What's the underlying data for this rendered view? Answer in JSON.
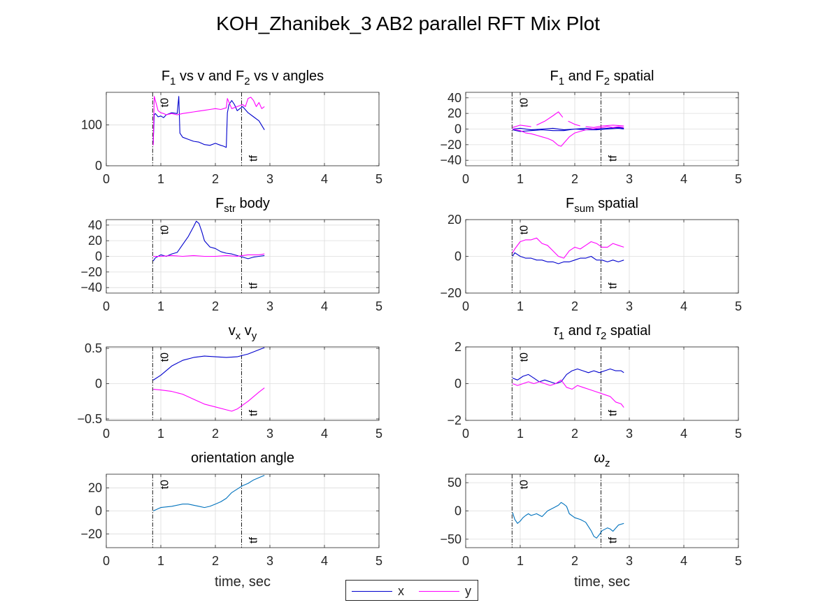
{
  "title": "KOH_Zhanibek_3 AB2 parallel RFT Mix Plot",
  "colors": {
    "x": "#0000cd",
    "y": "#ff00ff",
    "single": "#0072bd",
    "axis": "#262626",
    "grid": "#dcdcdc",
    "marker": "#000000"
  },
  "markers": {
    "t0": 0.85,
    "tf": 2.48,
    "t0_label": "t0",
    "tf_label": "tf"
  },
  "legend": {
    "placement": "bottom-center",
    "items": [
      {
        "label": "x",
        "series": "x"
      },
      {
        "label": "y",
        "series": "y"
      }
    ]
  },
  "chart_data": [
    {
      "id": "p1",
      "type": "line",
      "title": [
        {
          "t": "F"
        },
        {
          "t": "1",
          "sub": true
        },
        {
          "t": " vs v and F"
        },
        {
          "t": "2",
          "sub": true
        },
        {
          "t": " vs v angles"
        }
      ],
      "xlabel": "",
      "xlim": [
        0,
        5
      ],
      "ylim": [
        0,
        180
      ],
      "xticks": [
        0,
        1,
        2,
        3,
        4,
        5
      ],
      "yticks": [
        0,
        100
      ],
      "grid": true,
      "series": [
        {
          "key": "x",
          "x": [
            0.86,
            0.88,
            0.9,
            0.95,
            1.0,
            1.05,
            1.1,
            1.2,
            1.3,
            1.33,
            1.35,
            1.4,
            1.5,
            1.6,
            1.7,
            1.8,
            1.9,
            2.0,
            2.1,
            2.15,
            2.2,
            2.22,
            2.25,
            2.3,
            2.35,
            2.4,
            2.45,
            2.5,
            2.6,
            2.7,
            2.8,
            2.9
          ],
          "y": [
            55,
            125,
            128,
            120,
            122,
            118,
            125,
            130,
            128,
            170,
            80,
            70,
            65,
            60,
            58,
            52,
            50,
            55,
            50,
            48,
            45,
            130,
            150,
            160,
            150,
            135,
            140,
            145,
            130,
            120,
            110,
            88
          ]
        },
        {
          "key": "y",
          "x": [
            0.86,
            0.88,
            0.9,
            0.95,
            1.0,
            1.05,
            1.1,
            1.2,
            1.3,
            1.4,
            1.5,
            1.6,
            1.7,
            1.8,
            1.9,
            2.0,
            2.1,
            2.2,
            2.22,
            2.3,
            2.4,
            2.5,
            2.55,
            2.6,
            2.65,
            2.7,
            2.75,
            2.8,
            2.85,
            2.9
          ],
          "y": [
            50,
            170,
            160,
            135,
            130,
            128,
            125,
            128,
            125,
            128,
            130,
            132,
            134,
            136,
            138,
            140,
            138,
            142,
            165,
            140,
            145,
            150,
            145,
            165,
            168,
            160,
            145,
            155,
            140,
            145
          ]
        }
      ]
    },
    {
      "id": "p2",
      "type": "line",
      "title": [
        {
          "t": "F"
        },
        {
          "t": "1",
          "sub": true
        },
        {
          "t": " and F"
        },
        {
          "t": "2",
          "sub": true
        },
        {
          "t": " spatial"
        }
      ],
      "xlabel": "",
      "xlim": [
        0,
        5
      ],
      "ylim": [
        -47,
        47
      ],
      "xticks": [
        0,
        1,
        2,
        3,
        4,
        5
      ],
      "yticks": [
        -40,
        -20,
        0,
        20,
        40
      ],
      "grid": true,
      "series": [
        {
          "key": "x",
          "x": [
            0.86,
            1.0,
            1.2,
            1.4,
            1.6,
            1.8,
            2.0,
            2.2,
            2.4,
            2.6,
            2.8,
            2.9
          ],
          "y": [
            0,
            1,
            -1,
            0,
            1,
            -1,
            0,
            1,
            0,
            1,
            2,
            1
          ]
        },
        {
          "key": "x",
          "x": [
            0.86,
            1.0,
            1.2,
            1.4,
            1.6,
            1.8,
            2.0,
            2.2,
            2.4,
            2.6,
            2.8,
            2.9
          ],
          "y": [
            -1,
            -3,
            -2,
            -1,
            -2,
            -2,
            0,
            -1,
            -1,
            0,
            1,
            0
          ]
        },
        {
          "key": "y",
          "x": [
            0.86,
            1.0,
            1.1,
            1.2,
            1.3,
            1.4,
            1.5,
            1.6,
            1.7,
            1.75,
            1.8,
            1.9,
            2.0,
            2.1,
            2.2,
            2.3,
            2.4,
            2.5,
            2.6,
            2.7,
            2.8,
            2.9
          ],
          "y": [
            0,
            -2,
            -5,
            -6,
            -8,
            -10,
            -12,
            -15,
            -21,
            -22,
            -18,
            -10,
            -5,
            -3,
            -1,
            0,
            1,
            2,
            3,
            2,
            3,
            2
          ]
        },
        {
          "key": "y",
          "x": [
            0.86,
            1.0,
            1.2
          ],
          "y": [
            2,
            5,
            3
          ]
        },
        {
          "key": "y",
          "x": [
            1.3,
            1.45,
            1.6,
            1.7,
            1.78
          ],
          "y": [
            5,
            10,
            17,
            22,
            15
          ]
        },
        {
          "key": "y",
          "x": [
            1.88,
            2.0,
            2.1
          ],
          "y": [
            10,
            6,
            4
          ]
        },
        {
          "key": "y",
          "x": [
            2.2,
            2.35,
            2.5,
            2.7,
            2.9
          ],
          "y": [
            3,
            2,
            4,
            5,
            4
          ]
        }
      ]
    },
    {
      "id": "p3",
      "type": "line",
      "title": [
        {
          "t": "F"
        },
        {
          "t": "str",
          "sub": true
        },
        {
          "t": " body"
        }
      ],
      "xlabel": "",
      "xlim": [
        0,
        5
      ],
      "ylim": [
        -47,
        47
      ],
      "xticks": [
        0,
        1,
        2,
        3,
        4,
        5
      ],
      "yticks": [
        -40,
        -20,
        0,
        20,
        40
      ],
      "grid": true,
      "series": [
        {
          "key": "x",
          "x": [
            0.86,
            0.9,
            1.0,
            1.1,
            1.2,
            1.3,
            1.4,
            1.5,
            1.6,
            1.65,
            1.7,
            1.75,
            1.8,
            1.9,
            2.0,
            2.1,
            2.2,
            2.3,
            2.4,
            2.5,
            2.6,
            2.7,
            2.8,
            2.9
          ],
          "y": [
            -6,
            -2,
            2,
            0,
            3,
            5,
            15,
            25,
            38,
            45,
            42,
            32,
            20,
            12,
            10,
            6,
            4,
            3,
            1,
            -1,
            -3,
            -1,
            0,
            1
          ]
        },
        {
          "key": "y",
          "x": [
            0.86,
            1.0,
            1.2,
            1.4,
            1.6,
            1.8,
            2.0,
            2.2,
            2.4,
            2.5,
            2.6,
            2.7,
            2.8,
            2.9
          ],
          "y": [
            0,
            0,
            1,
            0,
            1,
            0,
            0,
            1,
            0,
            1,
            2,
            2,
            2,
            3
          ]
        }
      ]
    },
    {
      "id": "p4",
      "type": "line",
      "title": [
        {
          "t": "F"
        },
        {
          "t": "sum",
          "sub": true
        },
        {
          "t": " spatial"
        }
      ],
      "xlabel": "",
      "xlim": [
        0,
        5
      ],
      "ylim": [
        -20,
        20
      ],
      "xticks": [
        0,
        1,
        2,
        3,
        4,
        5
      ],
      "yticks": [
        -20,
        0,
        20
      ],
      "grid": true,
      "series": [
        {
          "key": "x",
          "x": [
            0.86,
            0.9,
            1.0,
            1.1,
            1.2,
            1.3,
            1.4,
            1.5,
            1.6,
            1.7,
            1.8,
            1.9,
            2.0,
            2.1,
            2.2,
            2.3,
            2.4,
            2.5,
            2.6,
            2.7,
            2.8,
            2.9
          ],
          "y": [
            0,
            2,
            0,
            -1,
            -1,
            -2,
            -2,
            -3,
            -3,
            -4,
            -3,
            -3,
            -2,
            -1,
            -1,
            0,
            -2,
            -2,
            -3,
            -2,
            -3,
            -2
          ]
        },
        {
          "key": "y",
          "x": [
            0.86,
            0.9,
            1.0,
            1.1,
            1.2,
            1.3,
            1.4,
            1.5,
            1.6,
            1.7,
            1.8,
            1.9,
            2.0,
            2.1,
            2.2,
            2.3,
            2.4,
            2.5,
            2.6,
            2.7,
            2.8,
            2.9
          ],
          "y": [
            2,
            4,
            8,
            9,
            9,
            10,
            7,
            6,
            3,
            0,
            -1,
            3,
            5,
            4,
            6,
            8,
            7,
            5,
            5,
            7,
            6,
            5
          ]
        }
      ]
    },
    {
      "id": "p5",
      "type": "line",
      "title": [
        {
          "t": "v"
        },
        {
          "t": "x",
          "sub": true
        },
        {
          "t": " v"
        },
        {
          "t": "y",
          "sub": true
        }
      ],
      "xlabel": "",
      "xlim": [
        0,
        5
      ],
      "ylim": [
        -0.52,
        0.52
      ],
      "xticks": [
        0,
        1,
        2,
        3,
        4,
        5
      ],
      "yticks": [
        -0.5,
        0,
        0.5
      ],
      "grid": true,
      "series": [
        {
          "key": "x",
          "x": [
            0.86,
            1.0,
            1.2,
            1.4,
            1.6,
            1.8,
            2.0,
            2.2,
            2.4,
            2.6,
            2.8,
            2.9
          ],
          "y": [
            0.05,
            0.12,
            0.25,
            0.33,
            0.37,
            0.39,
            0.38,
            0.37,
            0.38,
            0.42,
            0.48,
            0.51
          ]
        },
        {
          "key": "y",
          "x": [
            0.86,
            1.0,
            1.2,
            1.4,
            1.6,
            1.8,
            2.0,
            2.2,
            2.3,
            2.4,
            2.6,
            2.8,
            2.9
          ],
          "y": [
            -0.08,
            -0.09,
            -0.11,
            -0.15,
            -0.22,
            -0.29,
            -0.33,
            -0.37,
            -0.39,
            -0.36,
            -0.25,
            -0.12,
            -0.06
          ]
        }
      ]
    },
    {
      "id": "p6",
      "type": "line",
      "title": [
        {
          "t": "τ",
          "italic": true
        },
        {
          "t": "1",
          "sub": true
        },
        {
          "t": " and "
        },
        {
          "t": "τ",
          "italic": true
        },
        {
          "t": "2",
          "sub": true
        },
        {
          "t": " spatial"
        }
      ],
      "xlabel": "",
      "xlim": [
        0,
        5
      ],
      "ylim": [
        -2,
        2
      ],
      "xticks": [
        0,
        1,
        2,
        3,
        4,
        5
      ],
      "yticks": [
        -2,
        0,
        2
      ],
      "grid": true,
      "series": [
        {
          "key": "x",
          "x": [
            0.86,
            0.95,
            1.05,
            1.15,
            1.25,
            1.35,
            1.45,
            1.55,
            1.65,
            1.75,
            1.85,
            1.95,
            2.05,
            2.15,
            2.25,
            2.35,
            2.45,
            2.55,
            2.65,
            2.75,
            2.85,
            2.9
          ],
          "y": [
            0.3,
            0.2,
            0.4,
            0.5,
            0.3,
            0.1,
            0.2,
            0.1,
            0.0,
            0.1,
            0.5,
            0.7,
            0.8,
            0.7,
            0.6,
            0.7,
            0.6,
            0.7,
            0.8,
            0.7,
            0.7,
            0.6
          ]
        },
        {
          "key": "y",
          "x": [
            0.86,
            0.95,
            1.05,
            1.15,
            1.25,
            1.35,
            1.45,
            1.55,
            1.65,
            1.75,
            1.85,
            1.95,
            2.05,
            2.15,
            2.25,
            2.35,
            2.45,
            2.55,
            2.65,
            2.75,
            2.85,
            2.9
          ],
          "y": [
            0.0,
            -0.1,
            0.0,
            0.1,
            0.0,
            0.1,
            0.0,
            -0.1,
            0.0,
            0.2,
            -0.2,
            -0.3,
            -0.1,
            -0.2,
            -0.3,
            -0.4,
            -0.5,
            -0.6,
            -0.7,
            -1.0,
            -1.1,
            -1.3
          ]
        }
      ]
    },
    {
      "id": "p7",
      "type": "line",
      "title": [
        {
          "t": "orientation angle"
        }
      ],
      "xlabel": "time, sec",
      "xlim": [
        0,
        5
      ],
      "ylim": [
        -32,
        32
      ],
      "xticks": [
        0,
        1,
        2,
        3,
        4,
        5
      ],
      "yticks": [
        -20,
        0,
        20
      ],
      "grid": true,
      "series": [
        {
          "key": "single",
          "x": [
            0.86,
            1.0,
            1.2,
            1.4,
            1.5,
            1.6,
            1.7,
            1.8,
            1.9,
            2.0,
            2.1,
            2.2,
            2.3,
            2.4,
            2.5,
            2.6,
            2.7,
            2.8,
            2.9
          ],
          "y": [
            0,
            3,
            4,
            6,
            6,
            5,
            4,
            3,
            4,
            6,
            8,
            11,
            16,
            19,
            22,
            24,
            27,
            29,
            31
          ]
        }
      ]
    },
    {
      "id": "p8",
      "type": "line",
      "title": [
        {
          "t": "ω",
          "italic": true
        },
        {
          "t": "z",
          "sub": true
        }
      ],
      "xlabel": "time, sec",
      "xlim": [
        0,
        5
      ],
      "ylim": [
        -65,
        65
      ],
      "xticks": [
        0,
        1,
        2,
        3,
        4,
        5
      ],
      "yticks": [
        -50,
        0,
        50
      ],
      "grid": true,
      "series": [
        {
          "key": "single",
          "x": [
            0.86,
            0.9,
            0.95,
            1.0,
            1.05,
            1.1,
            1.15,
            1.2,
            1.3,
            1.4,
            1.5,
            1.6,
            1.7,
            1.75,
            1.8,
            1.85,
            1.9,
            2.0,
            2.1,
            2.2,
            2.3,
            2.35,
            2.4,
            2.45,
            2.5,
            2.6,
            2.65,
            2.7,
            2.8,
            2.9
          ],
          "y": [
            -3,
            -15,
            -22,
            -18,
            -12,
            -8,
            -5,
            -8,
            -5,
            -10,
            0,
            5,
            10,
            15,
            12,
            8,
            -5,
            -12,
            -15,
            -20,
            -35,
            -45,
            -48,
            -42,
            -35,
            -30,
            -32,
            -36,
            -25,
            -22
          ]
        }
      ]
    }
  ]
}
